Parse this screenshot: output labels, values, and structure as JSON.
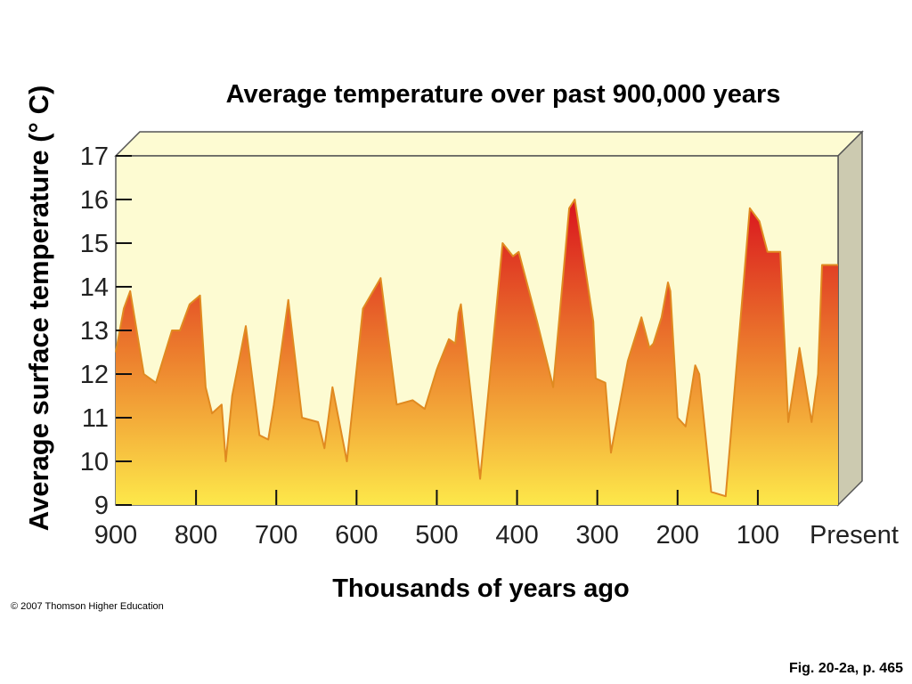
{
  "chart_data": {
    "type": "area",
    "title": "Average temperature over past 900,000 years",
    "xlabel": "Thousands of years ago",
    "ylabel": "Average surface temperature (°  C)",
    "xlim": [
      900,
      0
    ],
    "ylim": [
      9,
      17
    ],
    "yticks": [
      "9",
      "10",
      "11",
      "12",
      "13",
      "14",
      "15",
      "16",
      "17"
    ],
    "xticks": [
      "900",
      "800",
      "700",
      "600",
      "500",
      "400",
      "300",
      "200",
      "100",
      "Present"
    ],
    "grid": false,
    "series": [
      {
        "x": [
          900,
          890,
          882,
          865,
          850,
          830,
          820,
          808,
          795,
          788,
          780,
          768,
          763,
          755,
          738,
          721,
          710,
          703,
          685,
          668,
          648,
          640,
          630,
          612,
          592,
          570,
          550,
          530,
          515,
          500,
          498,
          485,
          477,
          473,
          470,
          446,
          418,
          405,
          398,
          375,
          355,
          335,
          328,
          305,
          302,
          290,
          283,
          262,
          245,
          235,
          230,
          220,
          212,
          209,
          200,
          190,
          178,
          173,
          158,
          140,
          110,
          98,
          88,
          72,
          62,
          48,
          33,
          25,
          20,
          0
        ],
        "y": [
          12.5,
          13.5,
          13.9,
          12.0,
          11.8,
          13.0,
          13.0,
          13.6,
          13.8,
          11.7,
          11.1,
          11.3,
          10.0,
          11.5,
          13.1,
          10.6,
          10.5,
          11.3,
          13.7,
          11.0,
          10.9,
          10.3,
          11.7,
          10.0,
          13.5,
          14.2,
          11.3,
          11.4,
          11.2,
          12.1,
          12.2,
          12.8,
          12.7,
          13.4,
          13.6,
          9.6,
          15.0,
          14.7,
          14.8,
          13.2,
          11.7,
          15.8,
          16.0,
          13.2,
          11.9,
          11.8,
          10.2,
          12.3,
          13.3,
          12.6,
          12.7,
          13.3,
          14.1,
          13.9,
          11.0,
          10.8,
          12.2,
          12.0,
          9.3,
          9.2,
          15.8,
          15.5,
          14.8,
          14.8,
          10.9,
          12.6,
          10.9,
          12.0,
          14.5,
          14.5
        ]
      }
    ]
  },
  "footer": {
    "copyright": "© 2007 Thomson Higher Education",
    "figref": "Fig. 20-2a, p. 465"
  },
  "colors": {
    "panel_fill": "#fdfbd2",
    "side_fill": "#cccab0",
    "area_top": "#d9141e",
    "area_mid": "#ec7d2d",
    "area_bottom": "#fde84a",
    "outline": "#e08a20"
  }
}
